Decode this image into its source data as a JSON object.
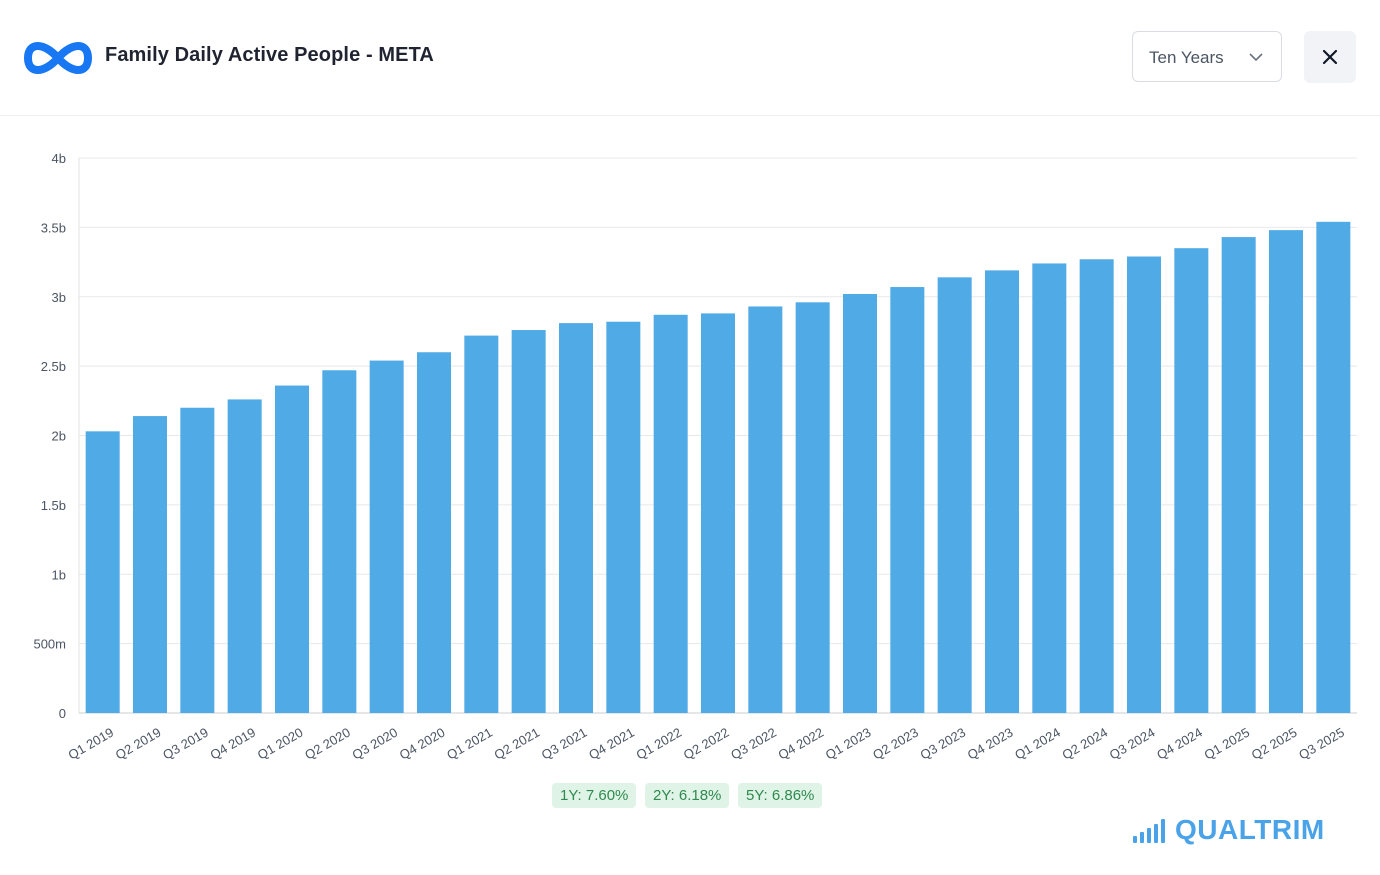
{
  "header": {
    "title": "Family Daily Active People - META",
    "logo_icon": "meta-infinity-logo-icon",
    "range_select": {
      "value": "Ten Years",
      "icon": "chevron-down-icon"
    },
    "close_icon": "close-icon"
  },
  "colors": {
    "bar": "#4faae6",
    "grid": "#e6e8eb",
    "accent": "#4aa3e8",
    "pill_bg": "#dff3e6",
    "pill_text": "#2f8a4f"
  },
  "growth": [
    "1Y: 7.60%",
    "2Y: 6.18%",
    "5Y: 6.86%"
  ],
  "brand": {
    "name": "QUALTRIM",
    "icon": "signal-bars-icon"
  },
  "chart_data": {
    "type": "bar",
    "title": "Family Daily Active People - META",
    "xlabel": "",
    "ylabel": "",
    "ylim": [
      0,
      4000000000
    ],
    "yticks": [
      {
        "value": 0,
        "label": "0"
      },
      {
        "value": 500000000,
        "label": "500m"
      },
      {
        "value": 1000000000,
        "label": "1b"
      },
      {
        "value": 1500000000,
        "label": "1.5b"
      },
      {
        "value": 2000000000,
        "label": "2b"
      },
      {
        "value": 2500000000,
        "label": "2.5b"
      },
      {
        "value": 3000000000,
        "label": "3b"
      },
      {
        "value": 3500000000,
        "label": "3.5b"
      },
      {
        "value": 4000000000,
        "label": "4b"
      }
    ],
    "grid": true,
    "categories": [
      "Q1 2019",
      "Q2 2019",
      "Q3 2019",
      "Q4 2019",
      "Q1 2020",
      "Q2 2020",
      "Q3 2020",
      "Q4 2020",
      "Q1 2021",
      "Q2 2021",
      "Q3 2021",
      "Q4 2021",
      "Q1 2022",
      "Q2 2022",
      "Q3 2022",
      "Q4 2022",
      "Q1 2023",
      "Q2 2023",
      "Q3 2023",
      "Q4 2023",
      "Q1 2024",
      "Q2 2024",
      "Q3 2024",
      "Q4 2024",
      "Q1 2025",
      "Q2 2025",
      "Q3 2025"
    ],
    "values": [
      2030000000,
      2140000000,
      2200000000,
      2260000000,
      2360000000,
      2470000000,
      2540000000,
      2600000000,
      2720000000,
      2760000000,
      2810000000,
      2820000000,
      2870000000,
      2880000000,
      2930000000,
      2960000000,
      3020000000,
      3070000000,
      3140000000,
      3190000000,
      3240000000,
      3270000000,
      3290000000,
      3350000000,
      3430000000,
      3480000000,
      3540000000
    ]
  }
}
